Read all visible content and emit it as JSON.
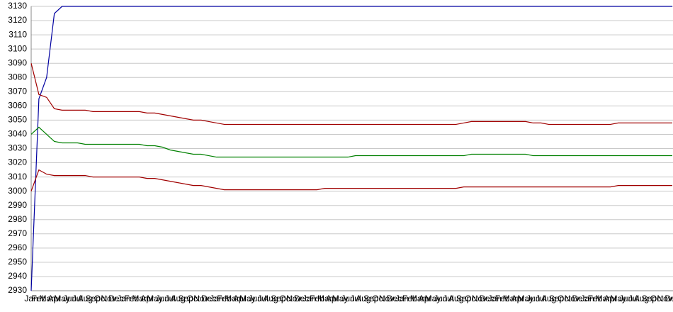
{
  "chart_data": {
    "type": "line",
    "categories": [
      "Jan",
      "Feb",
      "Mar",
      "Apr",
      "May",
      "Jun",
      "Jul",
      "Aug",
      "Sep",
      "Oct",
      "Nov",
      "Dec",
      "Jan",
      "Feb",
      "Mar",
      "Apr",
      "May",
      "Jun",
      "Jul",
      "Aug",
      "Sep",
      "Oct",
      "Nov",
      "Dec",
      "Jan",
      "Feb",
      "Mar",
      "Apr",
      "May",
      "Jun",
      "Jul",
      "Aug",
      "Sep",
      "Oct",
      "Nov",
      "Dec",
      "Jan",
      "Feb",
      "Mar",
      "Apr",
      "May",
      "Jun",
      "Jul",
      "Aug",
      "Sep",
      "Oct",
      "Nov",
      "Dec",
      "Jan",
      "Feb",
      "Mar",
      "Apr",
      "May",
      "Jun",
      "Jul",
      "Aug",
      "Sep",
      "Oct",
      "Nov",
      "Dec",
      "Jan",
      "Feb",
      "Mar",
      "Apr",
      "May",
      "Jun",
      "Jul",
      "Aug",
      "Sep",
      "Oct",
      "Nov",
      "Dec",
      "Jan",
      "Feb",
      "Mar",
      "Apr",
      "May",
      "Jun",
      "Jul",
      "Aug",
      "Sep",
      "Oct",
      "Nov",
      "Dec"
    ],
    "series": [
      {
        "color": "#0000a0",
        "values": [
          2930,
          3065,
          3080,
          3125,
          3130,
          3130,
          3130,
          3130,
          3130,
          3130,
          3130,
          3130,
          3130,
          3130,
          3130,
          3130,
          3130,
          3130,
          3130,
          3130,
          3130,
          3130,
          3130,
          3130,
          3130,
          3130,
          3130,
          3130,
          3130,
          3130,
          3130,
          3130,
          3130,
          3130,
          3130,
          3130,
          3130,
          3130,
          3130,
          3130,
          3130,
          3130,
          3130,
          3130,
          3130,
          3130,
          3130,
          3130,
          3130,
          3130,
          3130,
          3130,
          3130,
          3130,
          3130,
          3130,
          3130,
          3130,
          3130,
          3130,
          3130,
          3130,
          3130,
          3130,
          3130,
          3130,
          3130,
          3130,
          3130,
          3130,
          3130,
          3130,
          3130,
          3130,
          3130,
          3130,
          3130,
          3130,
          3130,
          3130,
          3130,
          3130,
          3130,
          3130
        ]
      },
      {
        "color": "#a00000",
        "values": [
          3090,
          3068,
          3066,
          3058,
          3057,
          3057,
          3057,
          3057,
          3056,
          3056,
          3056,
          3056,
          3056,
          3056,
          3056,
          3055,
          3055,
          3054,
          3053,
          3052,
          3051,
          3050,
          3050,
          3049,
          3048,
          3047,
          3047,
          3047,
          3047,
          3047,
          3047,
          3047,
          3047,
          3047,
          3047,
          3047,
          3047,
          3047,
          3047,
          3047,
          3047,
          3047,
          3047,
          3047,
          3047,
          3047,
          3047,
          3047,
          3047,
          3047,
          3047,
          3047,
          3047,
          3047,
          3047,
          3047,
          3048,
          3049,
          3049,
          3049,
          3049,
          3049,
          3049,
          3049,
          3049,
          3048,
          3048,
          3047,
          3047,
          3047,
          3047,
          3047,
          3047,
          3047,
          3047,
          3047,
          3048,
          3048,
          3048,
          3048,
          3048,
          3048,
          3048,
          3048
        ]
      },
      {
        "color": "#008000",
        "values": [
          3040,
          3045,
          3040,
          3035,
          3034,
          3034,
          3034,
          3033,
          3033,
          3033,
          3033,
          3033,
          3033,
          3033,
          3033,
          3032,
          3032,
          3031,
          3029,
          3028,
          3027,
          3026,
          3026,
          3025,
          3024,
          3024,
          3024,
          3024,
          3024,
          3024,
          3024,
          3024,
          3024,
          3024,
          3024,
          3024,
          3024,
          3024,
          3024,
          3024,
          3024,
          3024,
          3025,
          3025,
          3025,
          3025,
          3025,
          3025,
          3025,
          3025,
          3025,
          3025,
          3025,
          3025,
          3025,
          3025,
          3025,
          3026,
          3026,
          3026,
          3026,
          3026,
          3026,
          3026,
          3026,
          3025,
          3025,
          3025,
          3025,
          3025,
          3025,
          3025,
          3025,
          3025,
          3025,
          3025,
          3025,
          3025,
          3025,
          3025,
          3025,
          3025,
          3025,
          3025
        ]
      },
      {
        "color": "#a00000",
        "values": [
          3000,
          3015,
          3012,
          3011,
          3011,
          3011,
          3011,
          3011,
          3010,
          3010,
          3010,
          3010,
          3010,
          3010,
          3010,
          3009,
          3009,
          3008,
          3007,
          3006,
          3005,
          3004,
          3004,
          3003,
          3002,
          3001,
          3001,
          3001,
          3001,
          3001,
          3001,
          3001,
          3001,
          3001,
          3001,
          3001,
          3001,
          3001,
          3002,
          3002,
          3002,
          3002,
          3002,
          3002,
          3002,
          3002,
          3002,
          3002,
          3002,
          3002,
          3002,
          3002,
          3002,
          3002,
          3002,
          3002,
          3003,
          3003,
          3003,
          3003,
          3003,
          3003,
          3003,
          3003,
          3003,
          3003,
          3003,
          3003,
          3003,
          3003,
          3003,
          3003,
          3003,
          3003,
          3003,
          3003,
          3004,
          3004,
          3004,
          3004,
          3004,
          3004,
          3004,
          3004
        ]
      }
    ],
    "ylim": [
      2930,
      3130
    ],
    "yticks": [
      2930,
      2940,
      2950,
      2960,
      2970,
      2980,
      2990,
      3000,
      3010,
      3020,
      3030,
      3040,
      3050,
      3060,
      3070,
      3080,
      3090,
      3100,
      3110,
      3120,
      3130
    ],
    "grid": true
  }
}
